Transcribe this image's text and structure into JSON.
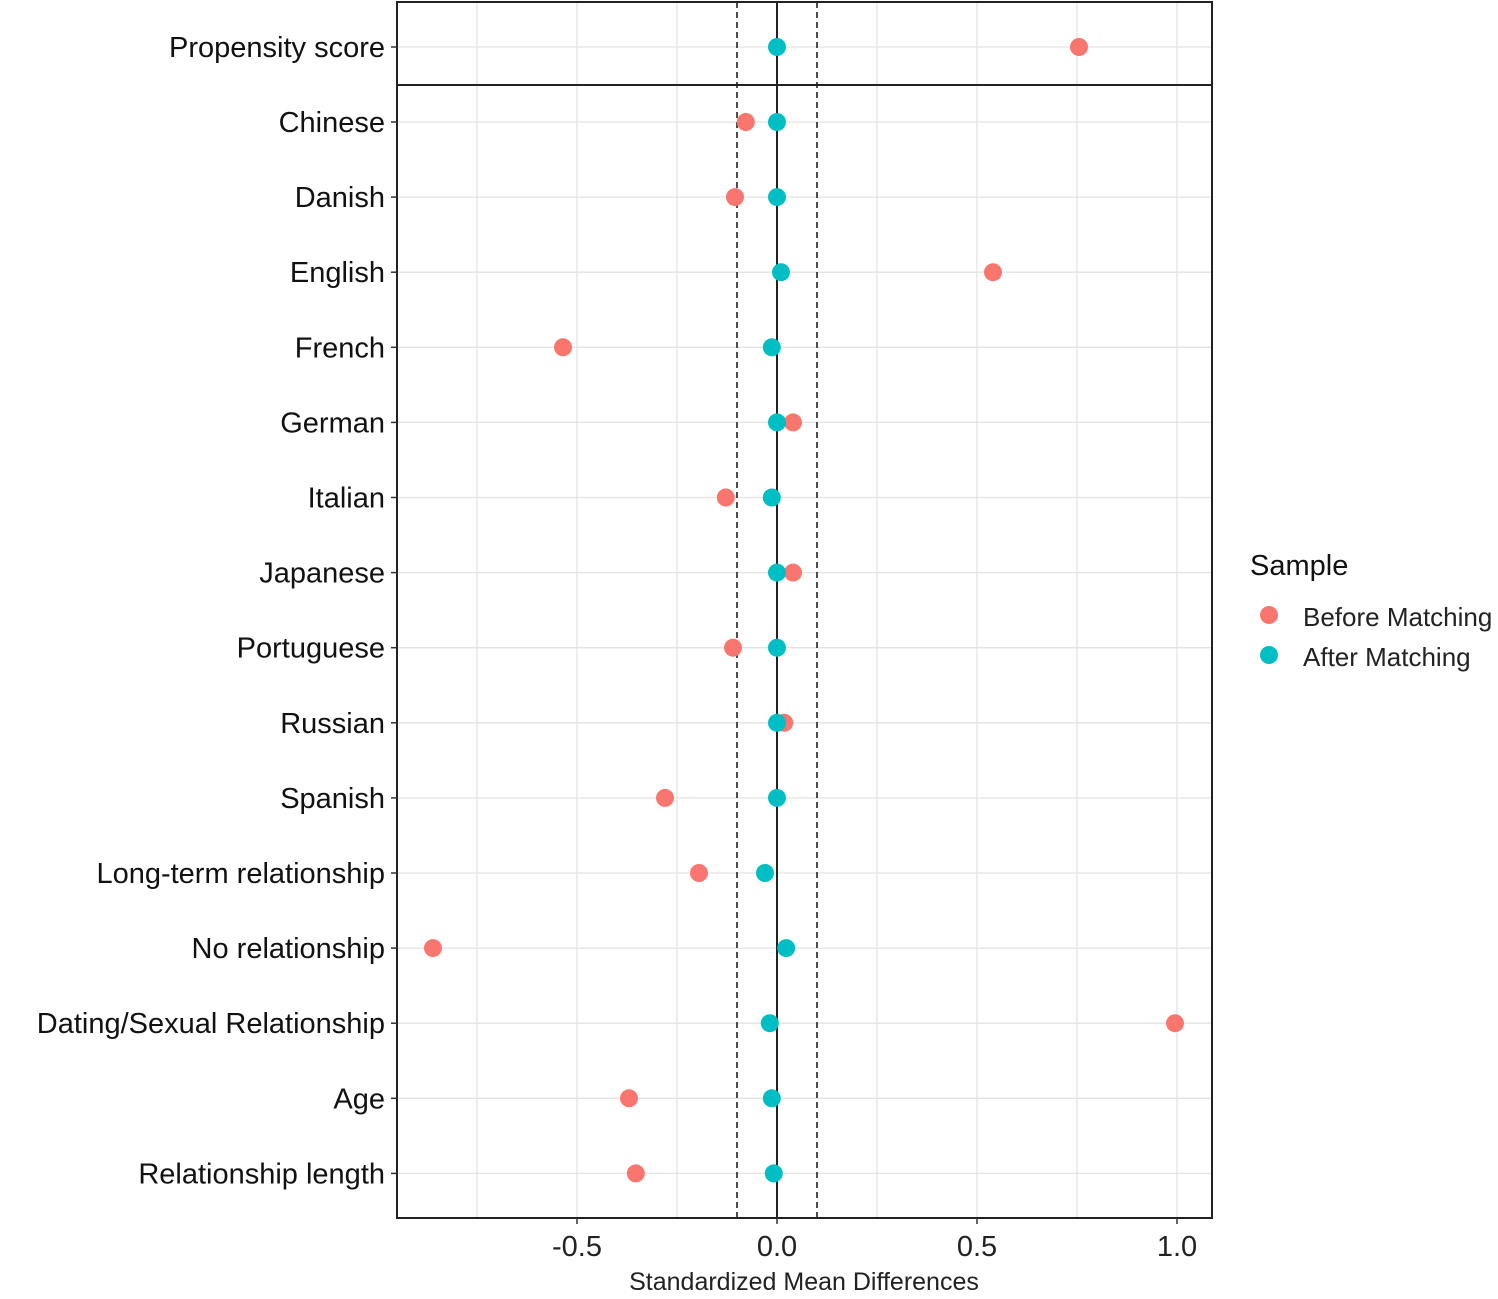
{
  "chart_data": {
    "type": "scatter",
    "xlabel": "Standardized Mean Differences",
    "ylabel": "",
    "xlim": [
      -0.95,
      1.0875
    ],
    "xticks": [
      -0.5,
      0.0,
      0.5,
      1.0
    ],
    "xtick_labels": [
      "-0.5",
      "0.0",
      "0.5",
      "1.0"
    ],
    "threshold_lines": [
      -0.1,
      0.1
    ],
    "zero_line": 0,
    "grid": true,
    "legend": {
      "title": "Sample",
      "placement": "right"
    },
    "colors": {
      "Before Matching": "#F8766D",
      "After Matching": "#00BFC4"
    },
    "top_panel_categories": [
      "Propensity score"
    ],
    "categories": [
      "Propensity score",
      "Chinese",
      "Danish",
      "English",
      "French",
      "German",
      "Italian",
      "Japanese",
      "Portuguese",
      "Russian",
      "Spanish",
      "Long-term relationship",
      "No relationship",
      "Dating/Sexual Relationship",
      "Age",
      "Relationship length"
    ],
    "series": [
      {
        "name": "Before Matching",
        "values": [
          0.755,
          -0.078,
          -0.105,
          0.54,
          -0.535,
          0.04,
          -0.128,
          0.04,
          -0.11,
          0.018,
          -0.28,
          -0.195,
          -0.86,
          0.995,
          -0.37,
          -0.353
        ]
      },
      {
        "name": "After Matching",
        "values": [
          0.0,
          0.0,
          0.0,
          0.01,
          -0.013,
          0.0,
          -0.013,
          0.0,
          0.0,
          0.0,
          0.0,
          -0.03,
          0.023,
          -0.018,
          -0.013,
          -0.008
        ]
      }
    ]
  }
}
